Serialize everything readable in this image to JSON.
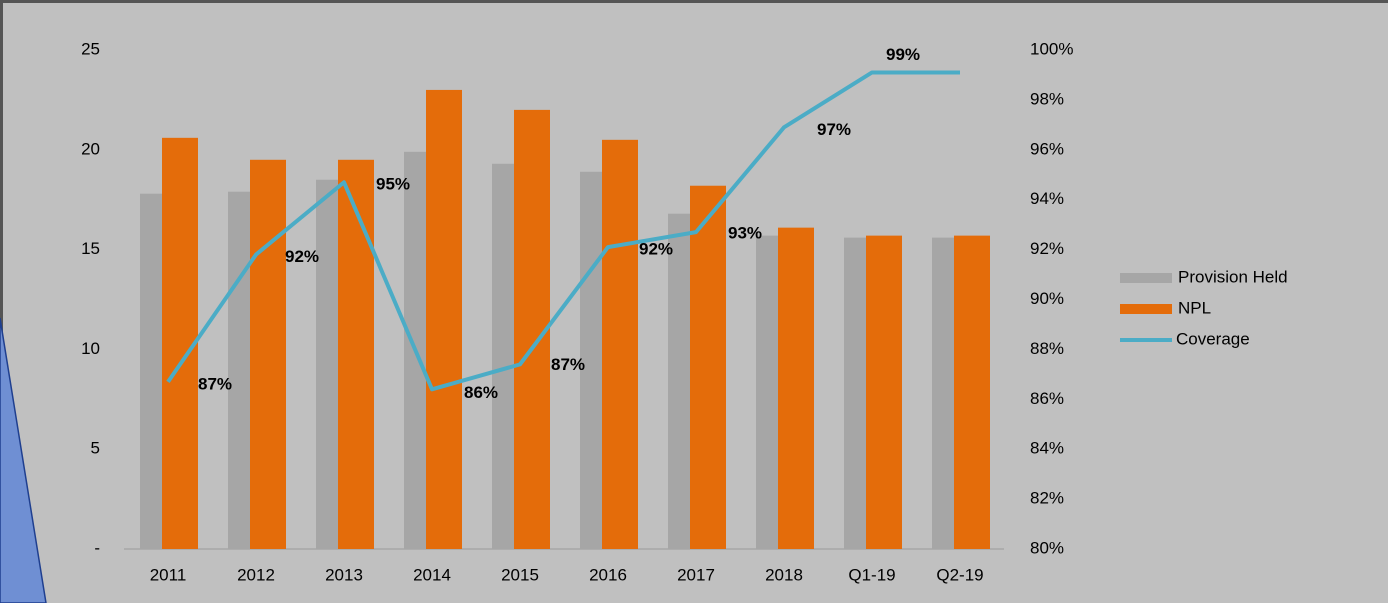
{
  "chart_data": {
    "type": "bar",
    "categories": [
      "2011",
      "2012",
      "2013",
      "2014",
      "2015",
      "2016",
      "2017",
      "2018",
      "Q1-19",
      "Q2-19"
    ],
    "series": [
      {
        "name": "Provision Held",
        "color": "#a6a6a6",
        "values": [
          17.8,
          17.9,
          18.5,
          19.9,
          19.3,
          18.9,
          16.8,
          15.7,
          15.6,
          15.6
        ]
      },
      {
        "name": "NPL",
        "color": "#e46c0a",
        "values": [
          20.6,
          19.5,
          19.5,
          23.0,
          22.0,
          20.5,
          18.2,
          16.1,
          15.7,
          15.7
        ]
      },
      {
        "name": "Coverage",
        "color": "#4bacc6",
        "type": "line",
        "axis": "y2",
        "values": [
          86.7,
          91.8,
          94.7,
          86.4,
          87.4,
          92.1,
          92.7,
          96.9,
          99.1,
          99.1
        ],
        "value_labels": [
          "87%",
          "92%",
          "95%",
          "86%",
          "87%",
          "92%",
          "93%",
          "97%",
          "99%",
          null
        ]
      }
    ],
    "ylim": [
      0,
      25
    ],
    "yticks": [
      {
        "value": 0,
        "label": "-"
      },
      5,
      10,
      15,
      20,
      25
    ],
    "y2lim": [
      80,
      100
    ],
    "y2ticks": [
      {
        "value": 80,
        "label": "80%"
      },
      {
        "value": 82,
        "label": "82%"
      },
      {
        "value": 84,
        "label": "84%"
      },
      {
        "value": 86,
        "label": "86%"
      },
      {
        "value": 88,
        "label": "88%"
      },
      {
        "value": 90,
        "label": "90%"
      },
      {
        "value": 92,
        "label": "92%"
      },
      {
        "value": 94,
        "label": "94%"
      },
      {
        "value": 96,
        "label": "96%"
      },
      {
        "value": 98,
        "label": "98%"
      },
      {
        "value": 100,
        "label": "100%"
      }
    ],
    "legend": "right"
  }
}
